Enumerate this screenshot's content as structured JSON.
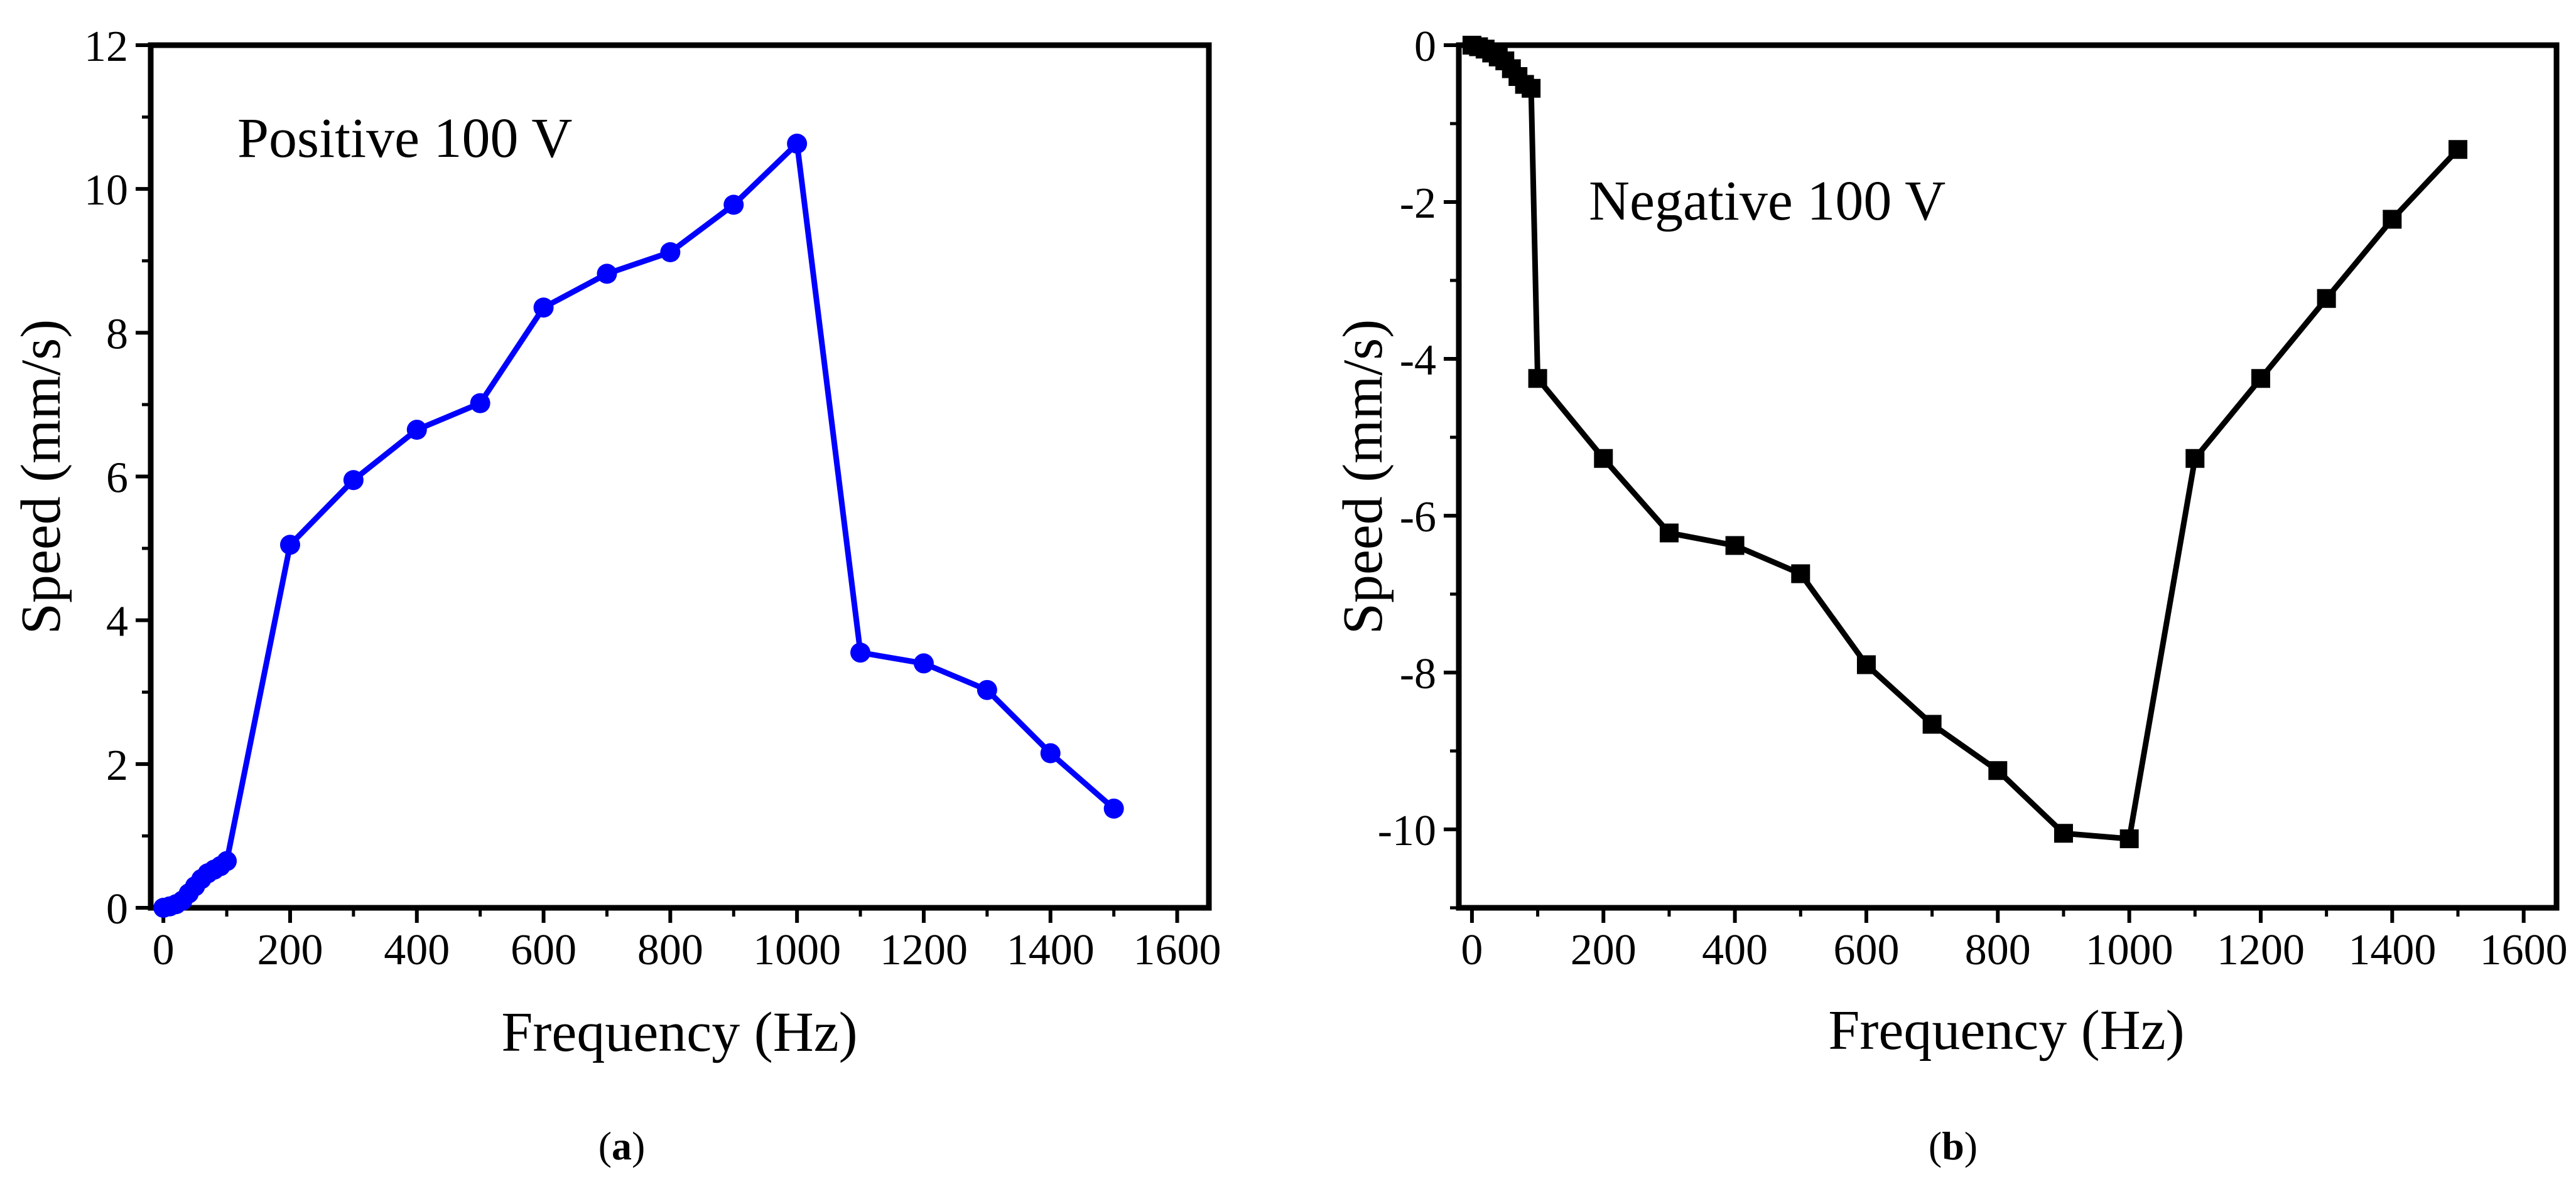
{
  "chart_data": [
    {
      "type": "line",
      "panel_label": "a",
      "annotation": "Positive 100 V",
      "xlabel": "Frequency (Hz)",
      "ylabel": "Speed (mm/s)",
      "xlim": [
        -20,
        1650
      ],
      "ylim": [
        0,
        12
      ],
      "xticks": [
        0,
        200,
        400,
        600,
        800,
        1000,
        1200,
        1400,
        1600
      ],
      "yticks": [
        0,
        2,
        4,
        6,
        8,
        10,
        12
      ],
      "xtick_labels": [
        "0",
        "200",
        "400",
        "600",
        "800",
        "1000",
        "1200",
        "1400",
        "1600"
      ],
      "ytick_labels": [
        "0",
        "2",
        "4",
        "6",
        "8",
        "10",
        "12"
      ],
      "color": "#0000ff",
      "marker": "circle",
      "series": [
        {
          "name": "Positive 100 V",
          "x": [
            0,
            10,
            20,
            30,
            40,
            50,
            60,
            70,
            80,
            90,
            100,
            200,
            300,
            400,
            500,
            600,
            700,
            800,
            900,
            1000,
            1100,
            1200,
            1300,
            1400,
            1500
          ],
          "y": [
            0,
            0.02,
            0.05,
            0.1,
            0.2,
            0.3,
            0.4,
            0.48,
            0.53,
            0.58,
            0.65,
            5.05,
            5.95,
            6.65,
            7.02,
            8.35,
            8.82,
            9.12,
            9.78,
            10.63,
            3.55,
            3.4,
            3.03,
            2.15,
            1.38
          ]
        }
      ]
    },
    {
      "type": "line",
      "panel_label": "b",
      "annotation": "Negative 100 V",
      "xlabel": "Frequency (Hz)",
      "ylabel": "Speed (mm/s)",
      "xlim": [
        -20,
        1650
      ],
      "ylim": [
        -11,
        0
      ],
      "xticks": [
        0,
        200,
        400,
        600,
        800,
        1000,
        1200,
        1400,
        1600
      ],
      "yticks": [
        0,
        -2,
        -4,
        -6,
        -8,
        -10
      ],
      "xtick_labels": [
        "0",
        "200",
        "400",
        "600",
        "800",
        "1000",
        "1200",
        "1400",
        "1600"
      ],
      "ytick_labels": [
        "0",
        "-2",
        "-4",
        "-6",
        "-8",
        "-10"
      ],
      "color": "#000000",
      "marker": "square",
      "series": [
        {
          "name": "Negative 100 V",
          "x": [
            0,
            10,
            20,
            30,
            40,
            50,
            60,
            70,
            80,
            90,
            100,
            200,
            300,
            400,
            500,
            600,
            700,
            800,
            900,
            1000,
            1100,
            1200,
            1300,
            1400,
            1500
          ],
          "y": [
            0,
            -0.02,
            -0.05,
            -0.1,
            -0.15,
            -0.2,
            -0.3,
            -0.4,
            -0.5,
            -0.55,
            -4.25,
            -5.27,
            -6.22,
            -6.38,
            -6.74,
            -7.9,
            -8.66,
            -9.25,
            -10.05,
            -10.12,
            -5.27,
            -4.25,
            -3.23,
            -2.22,
            -1.33
          ]
        }
      ]
    }
  ]
}
